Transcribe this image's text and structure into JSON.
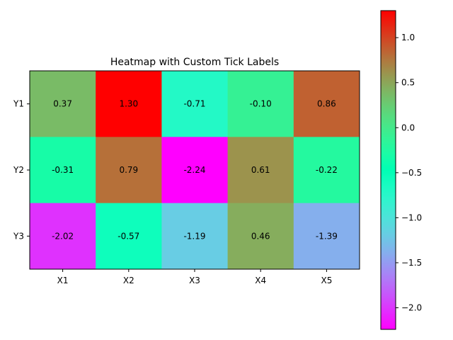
{
  "chart_data": {
    "type": "heatmap",
    "title": "Heatmap with Custom Tick Labels",
    "xlabel": "",
    "ylabel": "",
    "x_categories": [
      "X1",
      "X2",
      "X3",
      "X4",
      "X5"
    ],
    "y_categories": [
      "Y1",
      "Y2",
      "Y3"
    ],
    "values": [
      [
        0.37,
        1.3,
        -0.71,
        -0.1,
        0.86
      ],
      [
        -0.31,
        0.79,
        -2.24,
        0.61,
        -0.22
      ],
      [
        -2.02,
        -0.57,
        -1.19,
        0.46,
        -1.39
      ]
    ],
    "value_labels": [
      [
        "0.37",
        "1.30",
        "-0.71",
        "-0.10",
        "0.86"
      ],
      [
        "-0.31",
        "0.79",
        "-2.24",
        "0.61",
        "-0.22"
      ],
      [
        "-2.02",
        "-0.57",
        "-1.19",
        "0.46",
        "-1.39"
      ]
    ],
    "colormap": "rainbow",
    "vmin": -2.24,
    "vmax": 1.3,
    "colorbar": {
      "ticks": [
        -2.0,
        -1.5,
        -1.0,
        -0.5,
        0.0,
        0.5,
        1.0
      ],
      "tick_labels": [
        "−2.0",
        "−1.5",
        "−1.0",
        "−0.5",
        "0.0",
        "0.5",
        "1.0"
      ],
      "placement": "right"
    },
    "grid": false
  }
}
